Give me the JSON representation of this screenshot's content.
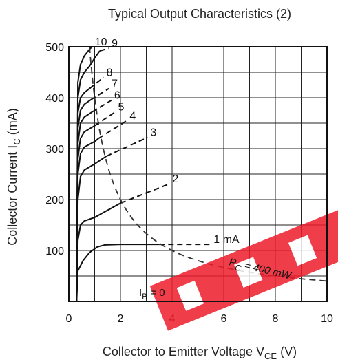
{
  "chart_data": {
    "type": "line",
    "title": "Typical Output Characteristics (2)",
    "xlabel": {
      "main": "Collector to Emitter Voltage",
      "sym": "V",
      "sub": "CE",
      "unit": "(V)"
    },
    "ylabel": {
      "main": "Collector Current",
      "sym": "I",
      "sub": "C",
      "unit": "(mA)"
    },
    "xlim": [
      0,
      10
    ],
    "ylim": [
      0,
      500
    ],
    "x_ticks": [
      "0",
      "2",
      "4",
      "6",
      "8",
      "10"
    ],
    "y_ticks": [
      "100",
      "200",
      "300",
      "400",
      "500"
    ],
    "grid": true,
    "series": [
      {
        "name": "I_B = 0",
        "label_text": "0",
        "dashed": false,
        "points": [
          [
            0.3,
            0
          ],
          [
            0.5,
            0
          ],
          [
            10,
            0
          ]
        ]
      },
      {
        "name": "1 mA",
        "label_text": "1 mA",
        "dashed": false,
        "points": [
          [
            0.3,
            0
          ],
          [
            0.35,
            60
          ],
          [
            0.55,
            80
          ],
          [
            0.8,
            96
          ],
          [
            1.1,
            107
          ],
          [
            1.4,
            111
          ],
          [
            2.0,
            112
          ],
          [
            3.5,
            112
          ]
        ],
        "dash_points": [
          [
            3.5,
            112
          ],
          [
            5.5,
            112
          ]
        ]
      },
      {
        "name": "2",
        "label_text": "2",
        "dashed": false,
        "points": [
          [
            0.3,
            0
          ],
          [
            0.35,
            120
          ],
          [
            0.45,
            150
          ],
          [
            0.6,
            158
          ],
          [
            1.0,
            165
          ],
          [
            2.0,
            193
          ]
        ],
        "dash_points": [
          [
            2.0,
            193
          ],
          [
            3.9,
            231
          ]
        ]
      },
      {
        "name": "3",
        "label_text": "3",
        "dashed": false,
        "points": [
          [
            0.3,
            0
          ],
          [
            0.35,
            200
          ],
          [
            0.45,
            245
          ],
          [
            0.6,
            258
          ],
          [
            1.0,
            270
          ],
          [
            1.45,
            285
          ]
        ],
        "dash_points": [
          [
            1.45,
            285
          ],
          [
            3.05,
            322
          ]
        ]
      },
      {
        "name": "4",
        "label_text": "4",
        "dashed": false,
        "points": [
          [
            0.3,
            0
          ],
          [
            0.35,
            250
          ],
          [
            0.45,
            290
          ],
          [
            0.6,
            303
          ],
          [
            1.0,
            314
          ],
          [
            1.15,
            320
          ]
        ],
        "dash_points": [
          [
            1.15,
            320
          ],
          [
            2.25,
            355
          ]
        ]
      },
      {
        "name": "5",
        "label_text": "5",
        "dashed": false,
        "points": [
          [
            0.3,
            0
          ],
          [
            0.35,
            280
          ],
          [
            0.45,
            320
          ],
          [
            0.6,
            333
          ],
          [
            1.0,
            345
          ]
        ],
        "dash_points": [
          [
            1.0,
            345
          ],
          [
            1.8,
            372
          ]
        ]
      },
      {
        "name": "6",
        "label_text": "6",
        "dashed": false,
        "points": [
          [
            0.3,
            0
          ],
          [
            0.35,
            310
          ],
          [
            0.45,
            350
          ],
          [
            0.6,
            362
          ],
          [
            0.9,
            372
          ]
        ],
        "dash_points": [
          [
            0.9,
            372
          ],
          [
            1.65,
            395
          ]
        ]
      },
      {
        "name": "7",
        "label_text": "7",
        "dashed": false,
        "points": [
          [
            0.3,
            0
          ],
          [
            0.35,
            340
          ],
          [
            0.45,
            375
          ],
          [
            0.6,
            387
          ],
          [
            0.85,
            396
          ]
        ],
        "dash_points": [
          [
            0.85,
            396
          ],
          [
            1.55,
            418
          ]
        ]
      },
      {
        "name": "8",
        "label_text": "8",
        "dashed": false,
        "points": [
          [
            0.3,
            0
          ],
          [
            0.35,
            370
          ],
          [
            0.45,
            400
          ],
          [
            0.6,
            410
          ],
          [
            0.8,
            418
          ]
        ],
        "dash_points": [
          [
            0.8,
            418
          ],
          [
            1.35,
            440
          ]
        ]
      },
      {
        "name": "9",
        "label_text": "9",
        "dashed": false,
        "points": [
          [
            0.3,
            0
          ],
          [
            0.35,
            400
          ],
          [
            0.45,
            435
          ],
          [
            0.6,
            450
          ],
          [
            0.8,
            462
          ],
          [
            1.0,
            478
          ],
          [
            1.2,
            492
          ]
        ],
        "dash_points": [
          [
            1.2,
            492
          ],
          [
            1.55,
            497
          ]
        ]
      },
      {
        "name": "10",
        "label_text": "10",
        "dashed": false,
        "points": [
          [
            0.3,
            0
          ],
          [
            0.35,
            430
          ],
          [
            0.45,
            465
          ],
          [
            0.6,
            482
          ],
          [
            0.8,
            495
          ],
          [
            0.9,
            500
          ]
        ],
        "dash_points": []
      }
    ],
    "power_curve": {
      "name": "P_C = 400 mW",
      "sym": "P",
      "sub": "C",
      "text": "= 400 mW",
      "power_mw": 400,
      "x_from": 0.8,
      "x_to": 10
    },
    "annotation_ib": {
      "sym": "I",
      "sub": "B",
      "text": "= 0"
    },
    "watermark_text": "RED"
  }
}
